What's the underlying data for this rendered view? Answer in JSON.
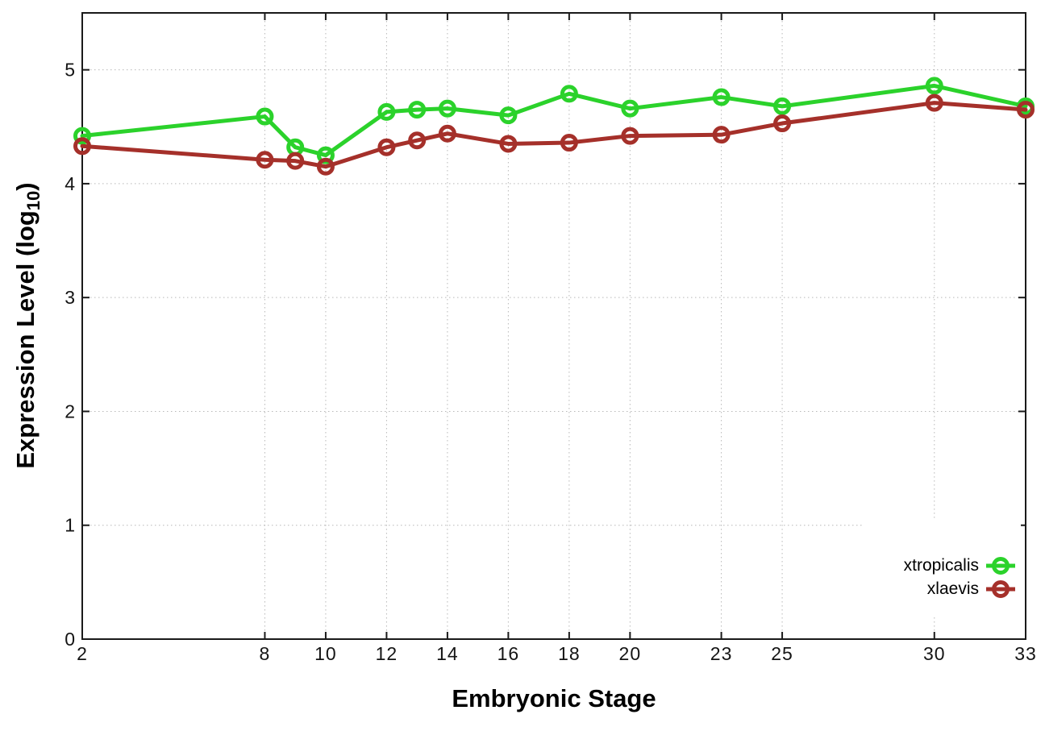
{
  "chart_data": {
    "type": "line",
    "title": "",
    "xlabel": "Embryonic Stage",
    "ylabel": {
      "prefix": "Expression Level (log",
      "subscript": "10",
      "suffix": ")"
    },
    "x": [
      2,
      8,
      9,
      10,
      12,
      13,
      14,
      16,
      18,
      20,
      23,
      25,
      30,
      33
    ],
    "series": [
      {
        "name": "xtropicalis",
        "color": "#2bd22b",
        "marker": "open-circle",
        "values": [
          4.42,
          4.59,
          4.32,
          4.25,
          4.63,
          4.65,
          4.66,
          4.6,
          4.79,
          4.66,
          4.76,
          4.68,
          4.86,
          4.68
        ]
      },
      {
        "name": "xlaevis",
        "color": "#a5302a",
        "marker": "open-circle",
        "values": [
          4.33,
          4.21,
          4.2,
          4.15,
          4.32,
          4.38,
          4.44,
          4.35,
          4.36,
          4.42,
          4.43,
          4.53,
          4.71,
          4.65
        ]
      }
    ],
    "xlim": [
      2,
      33
    ],
    "ylim": [
      0,
      5.5
    ],
    "x_ticks": [
      2,
      8,
      10,
      12,
      14,
      16,
      18,
      20,
      23,
      25,
      30,
      33
    ],
    "x_tick_labels": [
      "2",
      "8",
      "10",
      "12",
      "14",
      "16",
      "18",
      "20",
      "23",
      "25",
      "30",
      "33"
    ],
    "y_ticks": [
      0,
      1,
      2,
      3,
      4,
      5
    ],
    "y_tick_labels": [
      "0",
      "1",
      "2",
      "3",
      "4",
      "5"
    ],
    "grid": true,
    "legend_position": "inside-bottom-right",
    "axis_color": "#1a1a1a",
    "grid_color": "#b8b8b8",
    "tick_label_color": "#141414"
  }
}
